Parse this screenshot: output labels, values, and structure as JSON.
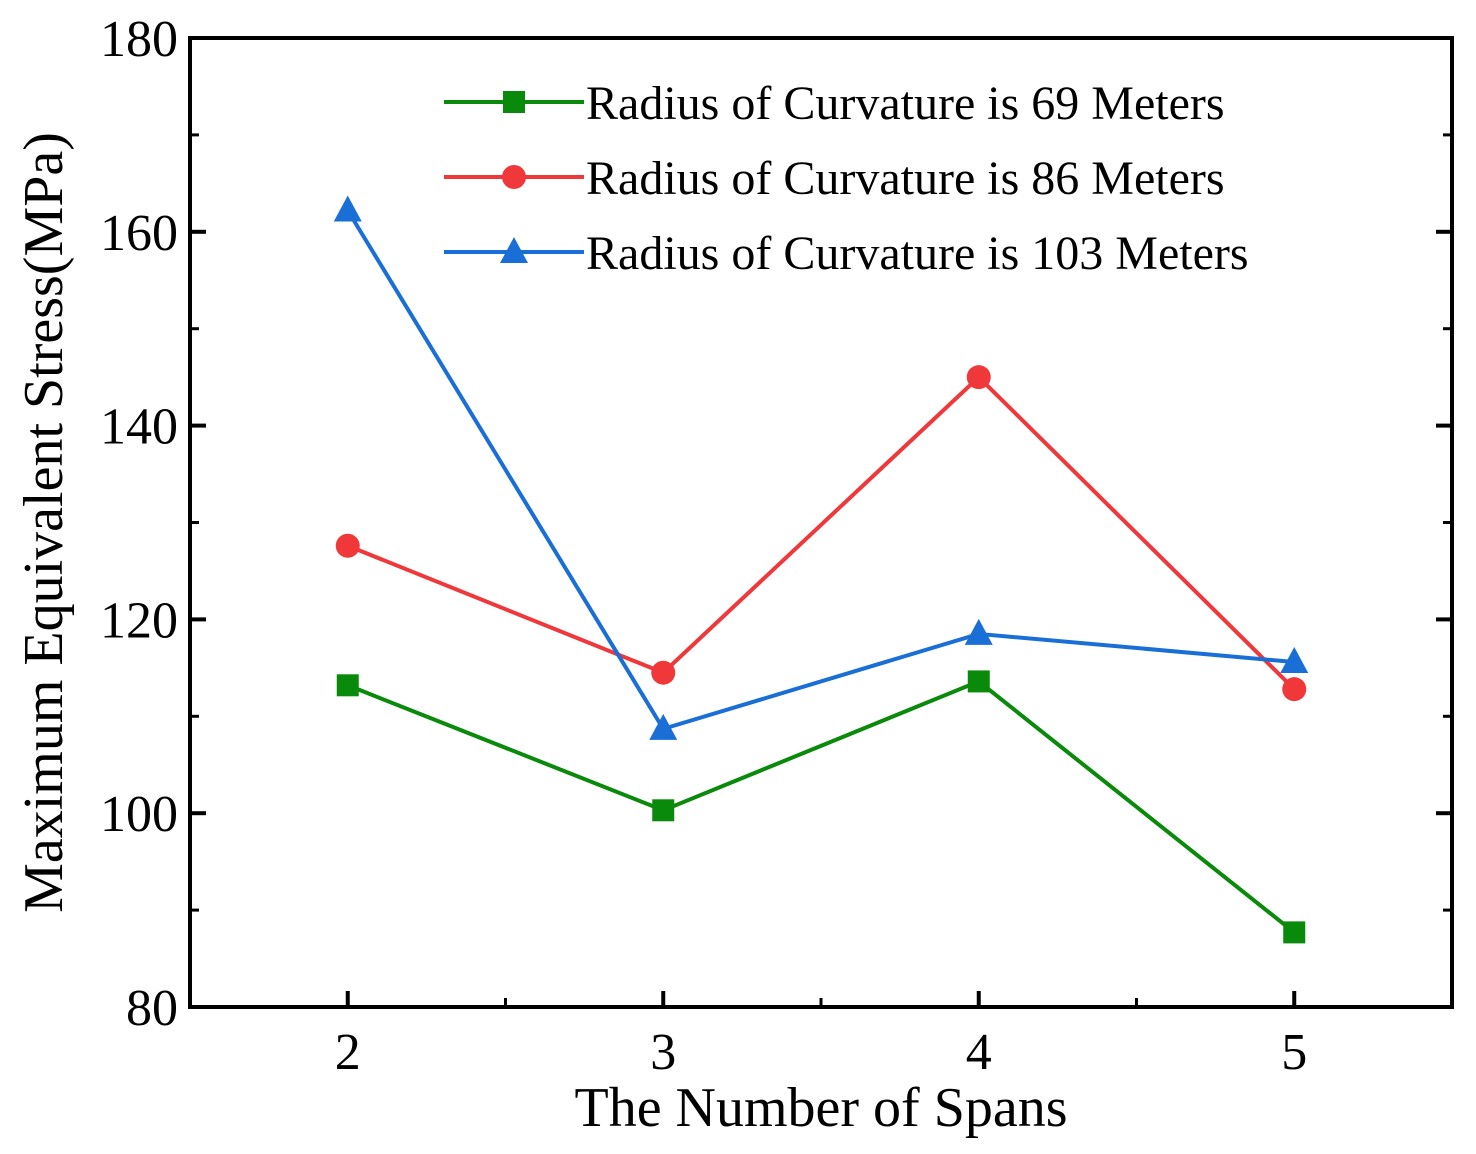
{
  "chart_data": {
    "type": "line",
    "title": "",
    "xlabel": "The Number of Spans",
    "ylabel": "Maximum Equivalent Stress(MPa)",
    "x": [
      2,
      3,
      4,
      5
    ],
    "xlim": [
      1.5,
      5.5
    ],
    "ylim": [
      80,
      180
    ],
    "x_ticks": [
      "2",
      "3",
      "4",
      "5"
    ],
    "y_ticks": [
      "80",
      "100",
      "120",
      "140",
      "160",
      "180"
    ],
    "grid": false,
    "legend_position": "top-right",
    "series": [
      {
        "name": "Radius of Curvature is 69 Meters",
        "color": "#0a8a0a",
        "marker": "square",
        "values": [
          113.2,
          100.3,
          113.6,
          87.7
        ]
      },
      {
        "name": "Radius of Curvature is 86 Meters",
        "color": "#f0373a",
        "marker": "circle",
        "values": [
          127.6,
          114.5,
          145.0,
          112.8
        ]
      },
      {
        "name": "Radius of Curvature is 103 Meters",
        "color": "#1a6fd6",
        "marker": "triangle",
        "values": [
          162.2,
          108.7,
          118.5,
          115.6
        ]
      }
    ]
  }
}
